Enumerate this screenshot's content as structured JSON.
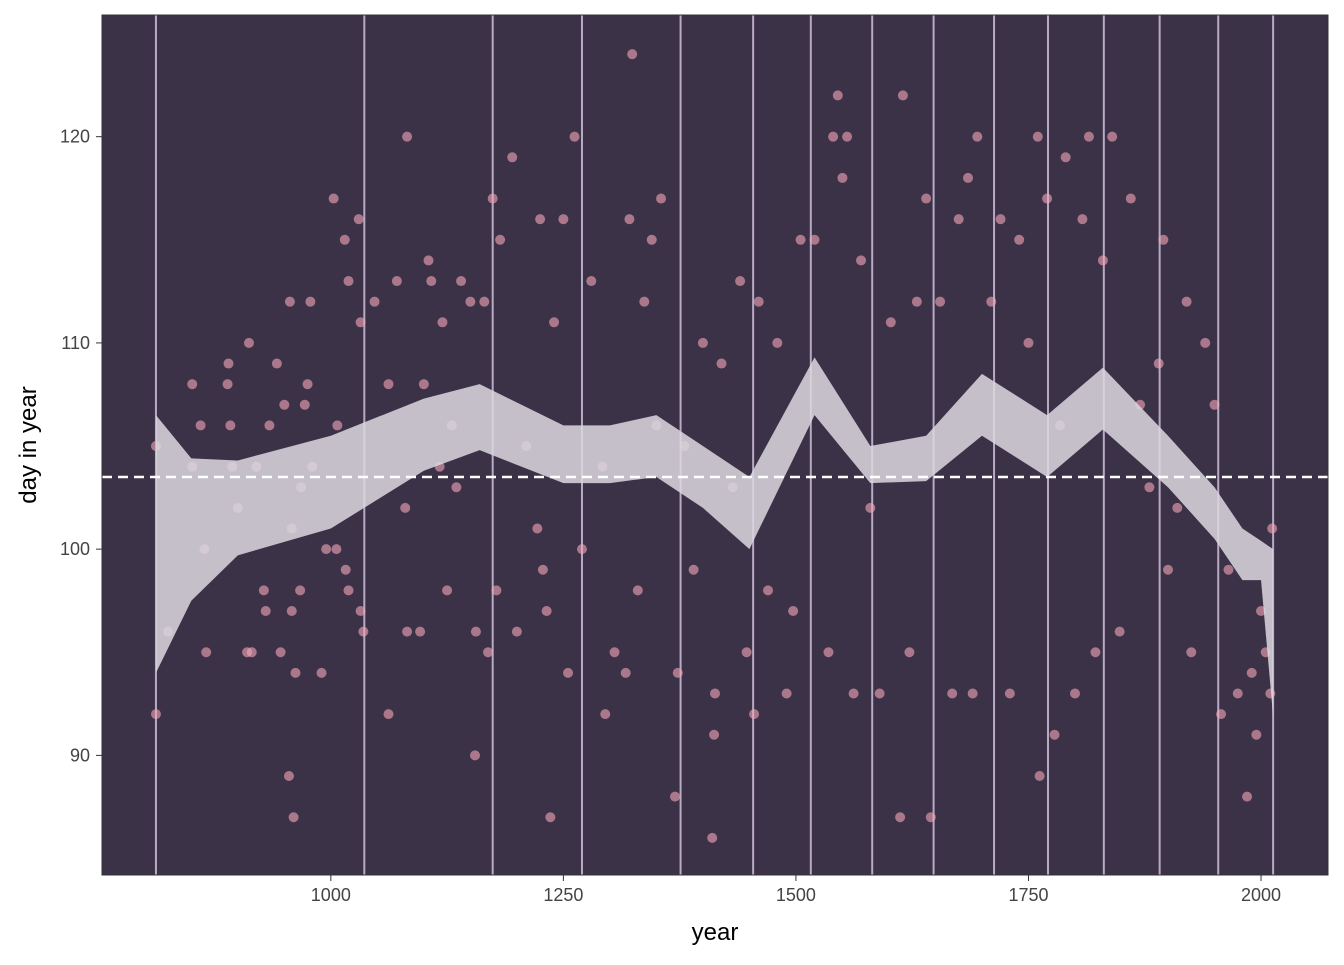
{
  "chart_data": {
    "type": "scatter",
    "x_label": "year",
    "y_label": "day in year",
    "xlim": [
      754,
      2072
    ],
    "ylim": [
      84.2,
      125.9
    ],
    "xticks": [
      1000,
      1250,
      1500,
      1750,
      2000
    ],
    "yticks": [
      90,
      100,
      110,
      120
    ],
    "background": "#3c3248",
    "point_color": "#f4a6b8",
    "ribbon_color": "#dcd8e0",
    "knot_color": "#b9aac4",
    "hline_color": "#ffffff",
    "hline": 103.5,
    "knots": [
      812,
      1036,
      1174,
      1270,
      1376,
      1454,
      1516,
      1582,
      1648,
      1713,
      1771,
      1831,
      1891,
      1954,
      2013
    ],
    "ribbon": {
      "x": [
        812,
        850,
        900,
        1000,
        1100,
        1160,
        1250,
        1300,
        1350,
        1400,
        1450,
        1520,
        1580,
        1640,
        1700,
        1770,
        1830,
        1900,
        1950,
        1980,
        2000,
        2013
      ],
      "upper": [
        106.5,
        104.4,
        104.3,
        105.5,
        107.3,
        108,
        106,
        106,
        106.5,
        105,
        103.5,
        109.3,
        105,
        105.5,
        108.5,
        106.5,
        108.8,
        105.5,
        103,
        101,
        100.4,
        100
      ],
      "lower": [
        94,
        97.5,
        99.7,
        101,
        103.8,
        104.8,
        103.2,
        103.2,
        103.5,
        102,
        100,
        106.5,
        103.2,
        103.3,
        105.5,
        103.5,
        105.8,
        103,
        100.5,
        98.5,
        98.5,
        91.9
      ]
    },
    "x": [
      812,
      812,
      825,
      851,
      851,
      860,
      866,
      864,
      890,
      889,
      894,
      892,
      900,
      912,
      910,
      915,
      920,
      928,
      930,
      934,
      942,
      950,
      946,
      956,
      955,
      958,
      958,
      960,
      962,
      967,
      968,
      972,
      975,
      978,
      980,
      990,
      995,
      1003,
      1007,
      1006,
      1015,
      1019,
      1016,
      1019,
      1030,
      1032,
      1032,
      1035,
      1047,
      1062,
      1062,
      1071,
      1080,
      1082,
      1082,
      1096,
      1100,
      1105,
      1108,
      1117,
      1120,
      1125,
      1130,
      1135,
      1140,
      1150,
      1155,
      1156,
      1165,
      1169,
      1174,
      1178,
      1182,
      1195,
      1200,
      1210,
      1222,
      1225,
      1228,
      1232,
      1236,
      1240,
      1250,
      1255,
      1262,
      1270,
      1280,
      1292,
      1295,
      1305,
      1317,
      1321,
      1324,
      1330,
      1337,
      1345,
      1350,
      1355,
      1370,
      1373,
      1380,
      1390,
      1400,
      1410,
      1412,
      1413,
      1420,
      1432,
      1440,
      1447,
      1455,
      1460,
      1470,
      1480,
      1490,
      1497,
      1505,
      1520,
      1535,
      1540,
      1545,
      1550,
      1555,
      1562,
      1570,
      1580,
      1590,
      1602,
      1612,
      1615,
      1622,
      1630,
      1640,
      1645,
      1655,
      1668,
      1675,
      1685,
      1690,
      1695,
      1710,
      1720,
      1730,
      1740,
      1750,
      1760,
      1762,
      1770,
      1778,
      1784,
      1790,
      1800,
      1808,
      1815,
      1822,
      1830,
      1840,
      1848,
      1860,
      1870,
      1880,
      1890,
      1895,
      1900,
      1910,
      1920,
      1925,
      1940,
      1950,
      1957,
      1965,
      1975,
      1985,
      1990,
      1995,
      2000,
      2005,
      2010,
      2012
    ],
    "values": [
      92,
      105,
      96,
      108,
      104,
      106,
      95,
      100,
      109,
      108,
      104,
      106,
      102,
      110,
      95,
      95,
      104,
      98,
      97,
      106,
      109,
      107,
      95,
      112,
      89,
      101,
      97,
      87,
      94,
      98,
      103,
      107,
      108,
      112,
      104,
      94,
      100,
      117,
      106,
      100,
      115,
      113,
      99,
      98,
      116,
      111,
      97,
      96,
      112,
      108,
      92,
      113,
      102,
      120,
      96,
      96,
      108,
      114,
      113,
      104,
      111,
      98,
      106,
      103,
      113,
      112,
      90,
      96,
      112,
      95,
      117,
      98,
      115,
      119,
      96,
      105,
      101,
      116,
      99,
      97,
      87,
      111,
      116,
      94,
      120,
      100,
      113,
      104,
      92,
      95,
      94,
      116,
      124,
      98,
      112,
      115,
      106,
      117,
      88,
      94,
      105,
      99,
      110,
      86,
      91,
      93,
      109,
      103,
      113,
      95,
      92,
      112,
      98,
      110,
      93,
      97,
      115,
      115,
      95,
      120,
      122,
      118,
      120,
      93,
      114,
      102,
      93,
      111,
      87,
      122,
      95,
      112,
      117,
      87,
      112,
      93,
      116,
      118,
      93,
      120,
      112,
      116,
      93,
      115,
      110,
      120,
      89,
      117,
      91,
      106,
      119,
      93,
      116,
      120,
      95,
      114,
      120,
      96,
      117,
      107,
      103,
      109,
      115,
      99,
      102,
      112,
      95,
      110,
      107,
      92,
      99,
      93,
      88,
      94,
      91,
      97,
      95,
      93,
      101
    ]
  }
}
